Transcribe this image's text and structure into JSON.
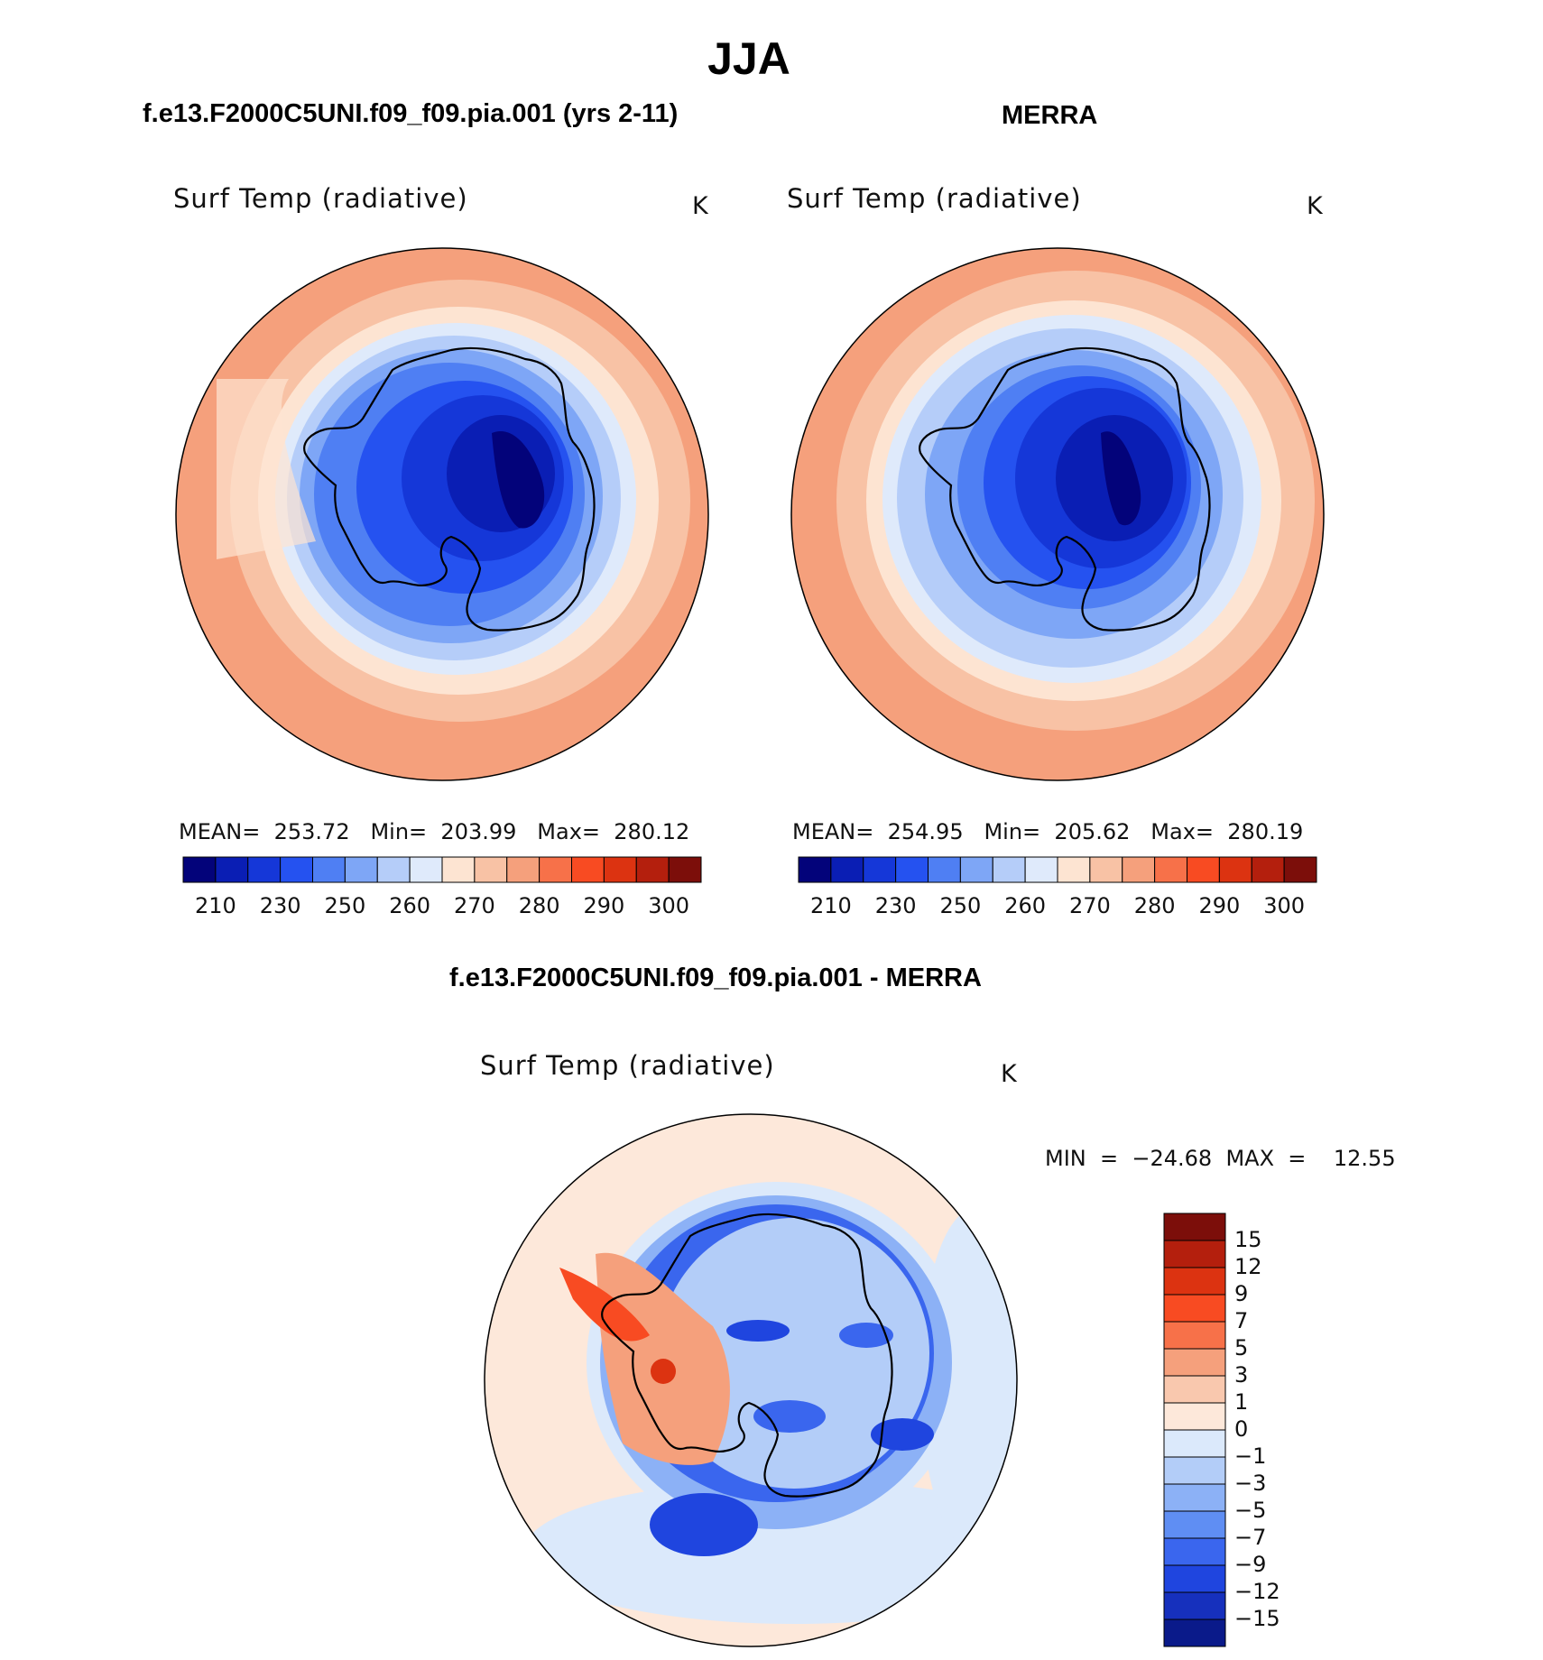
{
  "main_title": "JJA",
  "colors": {
    "levels": [
      "#03037a",
      "#0a1eb4",
      "#1537d8",
      "#2552f0",
      "#4f7ff3",
      "#7ea6f6",
      "#b5cdf9",
      "#dfeafb",
      "#fde4d2",
      "#f8c2a5",
      "#f5a07c",
      "#f77149",
      "#f84b22",
      "#dc3311",
      "#b41f0d",
      "#7c0e0a"
    ],
    "diff_levels": [
      "#7c0e0a",
      "#b41f0d",
      "#dc3311",
      "#f84b22",
      "#f77149",
      "#f5a07c",
      "#f9c8ae",
      "#fde8da",
      "#dbe9fb",
      "#b3cdf8",
      "#8cb1f6",
      "#5f8ef3",
      "#3a66ee",
      "#1f45df",
      "#1630bd",
      "#0a1a8a"
    ]
  },
  "panels": [
    {
      "heading": "f.e13.F2000C5UNI.f09_f09.pia.001 (yrs 2-11)",
      "variable": "Surf Temp (radiative)",
      "units": "K",
      "stats": "MEAN=  253.72   Min=  203.99   Max=  280.12",
      "colorbar_ticks": [
        "210",
        "230",
        "250",
        "260",
        "270",
        "280",
        "290",
        "300"
      ]
    },
    {
      "heading": "MERRA",
      "variable": "Surf Temp (radiative)",
      "units": "K",
      "stats": "MEAN=  254.95   Min=  205.62   Max=  280.19",
      "colorbar_ticks": [
        "210",
        "230",
        "250",
        "260",
        "270",
        "280",
        "290",
        "300"
      ]
    }
  ],
  "diff_panel": {
    "heading": "f.e13.F2000C5UNI.f09_f09.pia.001 - MERRA",
    "variable": "Surf Temp (radiative)",
    "units": "K",
    "stats": "MIN  =  −24.68  MAX  =    12.55",
    "colorbar_ticks": [
      "15",
      "12",
      "9",
      "7",
      "5",
      "3",
      "1",
      "0",
      "−1",
      "−3",
      "−5",
      "−7",
      "−9",
      "−12",
      "−15"
    ]
  }
}
